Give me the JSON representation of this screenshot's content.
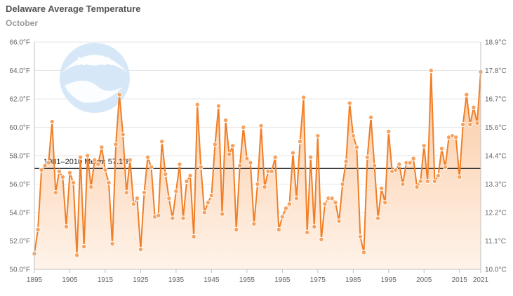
{
  "title": "Delaware Average Temperature",
  "subtitle": "October",
  "logo_text": "NOAA",
  "colors": {
    "line": "#f07f27",
    "marker_fill": "#f6a15e",
    "marker_stroke": "#ffffff",
    "area_top": "#fbc9a0",
    "area_bottom": "#fff3ea",
    "mean_line": "#222222",
    "grid": "#e6e6e6"
  },
  "chart_data": {
    "type": "line",
    "title": "Delaware Average Temperature",
    "subtitle": "October",
    "x": [
      1895,
      1896,
      1897,
      1898,
      1899,
      1900,
      1901,
      1902,
      1903,
      1904,
      1905,
      1906,
      1907,
      1908,
      1909,
      1910,
      1911,
      1912,
      1913,
      1914,
      1915,
      1916,
      1917,
      1918,
      1919,
      1920,
      1921,
      1922,
      1923,
      1924,
      1925,
      1926,
      1927,
      1928,
      1929,
      1930,
      1931,
      1932,
      1933,
      1934,
      1935,
      1936,
      1937,
      1938,
      1939,
      1940,
      1941,
      1942,
      1943,
      1944,
      1945,
      1946,
      1947,
      1948,
      1949,
      1950,
      1951,
      1952,
      1953,
      1954,
      1955,
      1956,
      1957,
      1958,
      1959,
      1960,
      1961,
      1962,
      1963,
      1964,
      1965,
      1966,
      1967,
      1968,
      1969,
      1970,
      1971,
      1972,
      1973,
      1974,
      1975,
      1976,
      1977,
      1978,
      1979,
      1980,
      1981,
      1982,
      1983,
      1984,
      1985,
      1986,
      1987,
      1988,
      1989,
      1990,
      1991,
      1992,
      1993,
      1994,
      1995,
      1996,
      1997,
      1998,
      1999,
      2000,
      2001,
      2002,
      2003,
      2004,
      2005,
      2006,
      2007,
      2008,
      2009,
      2010,
      2011,
      2012,
      2013,
      2014,
      2015,
      2016,
      2017,
      2018,
      2019,
      2020,
      2021
    ],
    "series": [
      {
        "values": [
          51.1,
          52.8,
          57.0,
          57.3,
          57.5,
          60.4,
          55.4,
          56.9,
          56.5,
          53.0,
          56.8,
          56.1,
          51.0,
          57.9,
          51.6,
          58.0,
          55.8,
          57.7,
          57.4,
          58.6,
          57.0,
          56.1,
          51.8,
          58.8,
          62.3,
          59.5,
          55.4,
          57.7,
          54.6,
          55.0,
          51.4,
          55.4,
          57.9,
          57.2,
          53.7,
          53.8,
          59.0,
          56.7,
          55.0,
          53.6,
          55.5,
          57.4,
          53.6,
          56.2,
          56.6,
          52.3,
          61.6,
          57.2,
          54.0,
          54.7,
          55.2,
          58.8,
          61.5,
          53.9,
          60.5,
          58.1,
          58.7,
          52.8,
          57.3,
          60.0,
          57.8,
          57.5,
          53.2,
          56.0,
          60.1,
          55.8,
          56.9,
          56.9,
          57.9,
          52.8,
          53.7,
          54.3,
          54.6,
          58.2,
          55.0,
          59.0,
          62.1,
          52.6,
          57.9,
          53.0,
          59.4,
          52.1,
          54.6,
          55.0,
          55.0,
          54.7,
          53.4,
          56.0,
          57.6,
          61.7,
          59.4,
          58.6,
          52.3,
          51.2,
          57.9,
          60.7,
          57.3,
          53.6,
          55.7,
          54.7,
          59.7,
          56.9,
          57.0,
          57.4,
          56.0,
          57.5,
          57.5,
          57.8,
          55.8,
          56.2,
          58.7,
          56.2,
          64.0,
          56.2,
          56.6,
          58.5,
          57.2,
          59.3,
          59.4,
          59.3,
          56.5,
          60.2,
          62.3,
          60.2,
          61.4,
          60.3,
          63.9
        ]
      }
    ],
    "xticks": [
      1895,
      1905,
      1915,
      1925,
      1935,
      1945,
      1955,
      1965,
      1975,
      1985,
      1995,
      2005,
      2015,
      2021
    ],
    "xlim": [
      1895,
      2021
    ],
    "ylim": [
      50,
      66
    ],
    "yticks": [
      50,
      52,
      54,
      56,
      58,
      60,
      62,
      64,
      66
    ],
    "ytick_labels": [
      "50.0°F",
      "52.0°F",
      "54.0°F",
      "56.0°F",
      "58.0°F",
      "60.0°F",
      "62.0°F",
      "64.0°F",
      "66.0°F"
    ],
    "y2ticks": [
      "10.0°C",
      "11.1°C",
      "12.2°C",
      "13.3°C",
      "14.4°C",
      "15.6°C",
      "16.7°C",
      "17.8°C",
      "18.9°C"
    ],
    "mean": {
      "value": 57.1,
      "label": "1981–2010 Mean: 57.1°F"
    },
    "grid": true,
    "legend": "none"
  }
}
